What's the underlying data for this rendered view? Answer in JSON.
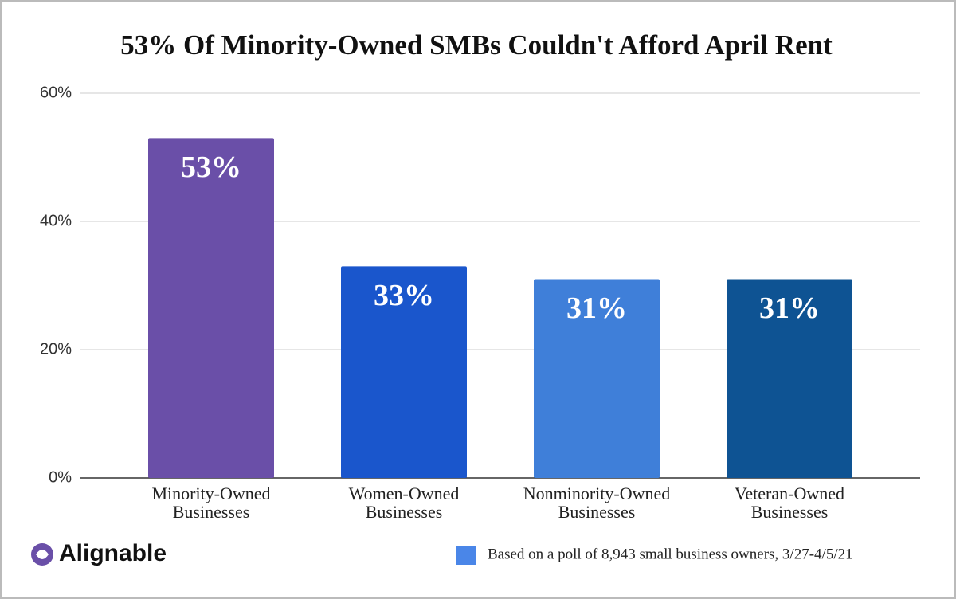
{
  "chart_data": {
    "type": "bar",
    "title": "53% Of Minority-Owned SMBs Couldn't Afford April Rent",
    "categories": [
      [
        "Minority-Owned",
        "Businesses"
      ],
      [
        "Women-Owned",
        "Businesses"
      ],
      [
        "Nonminority-Owned",
        "Businesses"
      ],
      [
        "Veteran-Owned",
        "Businesses"
      ]
    ],
    "values": [
      53,
      33,
      31,
      31
    ],
    "value_labels": [
      "53%",
      "33%",
      "31%",
      "31%"
    ],
    "colors": [
      "#6a4fa8",
      "#1a56cc",
      "#3f7fd9",
      "#0e5393"
    ],
    "ylim": [
      0,
      60
    ],
    "yticks": [
      {
        "value": 0,
        "label": "0%"
      },
      {
        "value": 20,
        "label": "20%"
      },
      {
        "value": 40,
        "label": "40%"
      },
      {
        "value": 60,
        "label": "60%"
      }
    ],
    "grid": true,
    "note": "Based on a poll of 8,943 small business owners, 3/27-4/5/21",
    "note_color": "#4a86e8",
    "logo": "Alignable"
  }
}
